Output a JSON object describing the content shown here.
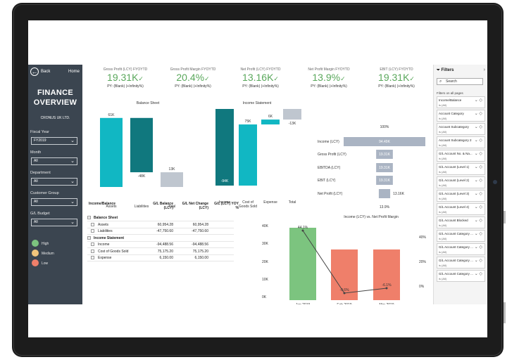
{
  "nav": {
    "back_label": "Back",
    "home_label": "Home",
    "title_line1": "FINANCE",
    "title_line2": "OVERVIEW",
    "company": "CRONUS UK LTD.",
    "filters": [
      {
        "label": "Fiscal Year",
        "value": "FY2019"
      },
      {
        "label": "Month",
        "value": "All"
      },
      {
        "label": "Department",
        "value": "All"
      },
      {
        "label": "Customer Group",
        "value": "All"
      },
      {
        "label": "G/L Budget",
        "value": "All"
      }
    ],
    "legend": [
      {
        "label": "High",
        "color": "#7cc47f"
      },
      {
        "label": "Medium",
        "color": "#f2c57c"
      },
      {
        "label": "Low",
        "color": "#ef7f6a"
      }
    ]
  },
  "kpis": [
    {
      "label": "Gross Profit (LCY) FYOYTD",
      "value": "19.31K",
      "py": "PY: (Blank) (+Infinity%)"
    },
    {
      "label": "Gross Profit Margin FYOYTD",
      "value": "20.4%",
      "py": "PY: (Blank) (+Infinity%)"
    },
    {
      "label": "Net Profit (LCY) FYOYTD",
      "value": "13.16K",
      "py": "PY: (Blank) (+Infinity%)"
    },
    {
      "label": "Net Profit Margin FYOYTD",
      "value": "13.9%",
      "py": "PY: (Blank) (+Infinity%)"
    },
    {
      "label": "EBIT (LCY) FYOYTD",
      "value": "19.31K",
      "py": "PY: (Blank) (+Infinity%)"
    }
  ],
  "table": {
    "headers": [
      "Income/Balance",
      "G/L Balance (LCY)",
      "G/L Net Change (LCY)",
      "G/L (LCY) YOY %"
    ],
    "rows": [
      {
        "label": "Balance Sheet",
        "bal": "",
        "net": "",
        "group": true
      },
      {
        "label": "Assets",
        "bal": "60,954.28",
        "net": "60,954.28",
        "group": false
      },
      {
        "label": "Liabilities",
        "bal": "-47,750.60",
        "net": "-47,750.60",
        "group": false
      },
      {
        "label": "Income Statement",
        "bal": "",
        "net": "",
        "group": true
      },
      {
        "label": "Income",
        "bal": "-94,488.56",
        "net": "-94,488.56",
        "group": false
      },
      {
        "label": "Cost of Goods Sold",
        "bal": "75,175.20",
        "net": "75,175.20",
        "group": false
      },
      {
        "label": "Expense",
        "bal": "6,150.00",
        "net": "6,150.00",
        "group": false
      }
    ]
  },
  "filters_pane": {
    "title": "Filters",
    "search_placeholder": "Search",
    "on_all_pages": "Filters on all pages",
    "cards": [
      {
        "name": "Income/Balance",
        "value": "is (All)"
      },
      {
        "name": "Account Category",
        "value": "is (All)"
      },
      {
        "name": "Account Subcategory",
        "value": "is (All)"
      },
      {
        "name": "Account Subcategory 2",
        "value": "is (All)"
      },
      {
        "name": "G/L Account No. & Na...",
        "value": "is (All)"
      },
      {
        "name": "G/L Account (Level 1)",
        "value": "is (All)"
      },
      {
        "name": "G/L Account (Level 2)",
        "value": "is (All)"
      },
      {
        "name": "G/L Account (Level 3)",
        "value": "is (All)"
      },
      {
        "name": "G/L Account (Level 4)",
        "value": "is (All)"
      },
      {
        "name": "G/L Account Blocked",
        "value": "is (All)"
      },
      {
        "name": "G/L Account Category ...",
        "value": "is (All)"
      },
      {
        "name": "G/L Account Category ...",
        "value": "is (All)"
      },
      {
        "name": "G/L Account Category ...",
        "value": "is (All)"
      },
      {
        "name": "G/L Account Category ...",
        "value": "is (All)"
      }
    ]
  },
  "chart_data": [
    {
      "type": "waterfall",
      "title": "Balance Sheet",
      "categories": [
        "Assets",
        "Liabilities",
        "Total"
      ],
      "values": [
        61,
        -48,
        13
      ],
      "labels": [
        "61K",
        "-48K",
        "13K"
      ],
      "colors": [
        "#11b7c3",
        "#10787e",
        "#bfc6cf"
      ]
    },
    {
      "type": "waterfall",
      "title": "Income Statement",
      "categories": [
        "Income",
        "Cost of Goods Sold",
        "Expense",
        "Total"
      ],
      "values": [
        -94,
        75,
        6,
        -13
      ],
      "labels": [
        "-94K",
        "75K",
        "6K",
        "-13K"
      ],
      "colors": [
        "#10787e",
        "#11b7c3",
        "#11b7c3",
        "#bfc6cf"
      ]
    },
    {
      "type": "funnel",
      "top_label": "100%",
      "bottom_label": "13.9%",
      "categories": [
        "Income (LCY)",
        "Gross Profit (LCY)",
        "EBITDA (LCY)",
        "EBIT (LCY)",
        "Net Profit (LCY)"
      ],
      "values": [
        94.49,
        19.31,
        19.31,
        19.31,
        13.16
      ],
      "labels": [
        "94.49K",
        "19.31K",
        "19.31K",
        "19.31K",
        "13.16K"
      ]
    },
    {
      "type": "bar",
      "title": "Income (LCY) vs. Net Profit Margin",
      "categories": [
        "Jan 2019",
        "Feb 2019",
        "Mar 2019"
      ],
      "series": [
        {
          "values": [
            40,
            28,
            28
          ],
          "colors": [
            "#7cc47f",
            "#ef7f6a",
            "#ef7f6a"
          ]
        }
      ],
      "line": {
        "values": [
          44.1,
          -9.6,
          -6.1
        ],
        "labels": [
          "44.1%",
          "-9.6%",
          "-6.1%"
        ]
      },
      "y_ticks": [
        "40K",
        "30K",
        "20K",
        "10K",
        "0K"
      ],
      "y2_ticks": [
        "40%",
        "20%",
        "0%"
      ],
      "ylim": [
        0,
        40
      ]
    }
  ]
}
